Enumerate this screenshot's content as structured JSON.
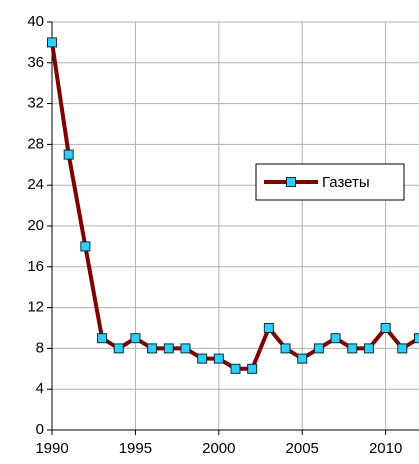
{
  "chart_data": {
    "type": "line",
    "x": [
      1990,
      1991,
      1992,
      1993,
      1994,
      1995,
      1996,
      1997,
      1998,
      1999,
      2000,
      2001,
      2002,
      2003,
      2004,
      2005,
      2006,
      2007,
      2008,
      2009,
      2010,
      2011,
      2012
    ],
    "series": [
      {
        "name": "Газеты",
        "color": "#800000",
        "marker_color": "#33ccff",
        "values": [
          38,
          27,
          18,
          9,
          8,
          9,
          8,
          8,
          8,
          7,
          7,
          6,
          6,
          10,
          8,
          7,
          8,
          9,
          8,
          8,
          10,
          8,
          9
        ]
      }
    ],
    "xlim": [
      1990,
      2012
    ],
    "xticks": [
      1990,
      1995,
      2000,
      2005,
      2010
    ],
    "ylim": [
      0,
      40
    ],
    "yticks": [
      0,
      4,
      8,
      12,
      16,
      20,
      24,
      28,
      32,
      36,
      40
    ],
    "grid": true,
    "legend": "right"
  }
}
